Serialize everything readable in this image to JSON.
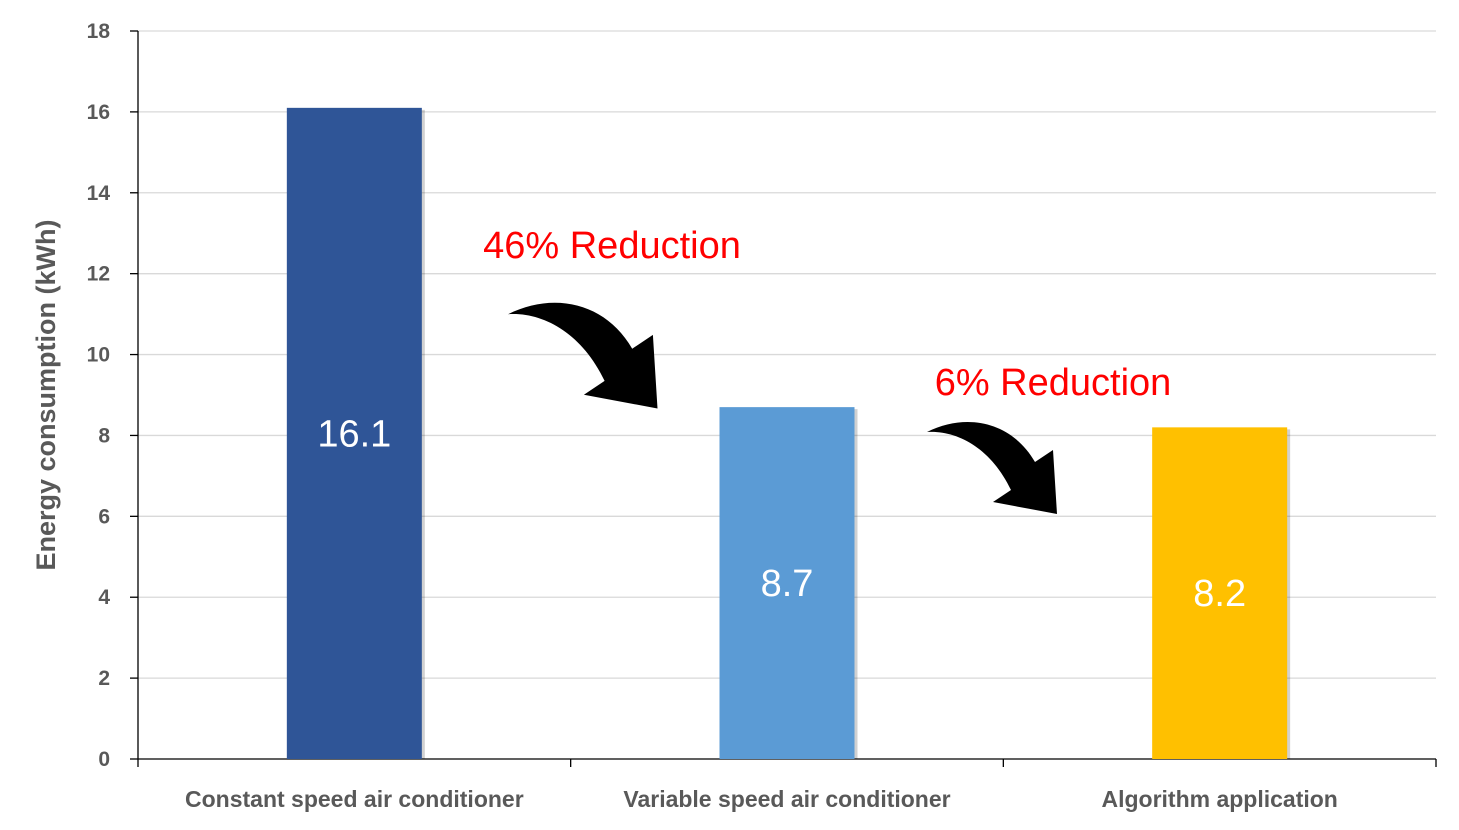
{
  "chart_data": {
    "type": "bar",
    "categories": [
      "Constant speed air conditioner",
      "Variable speed air conditioner",
      "Algorithm application"
    ],
    "values": [
      16.1,
      8.7,
      8.2
    ],
    "value_labels": [
      "16.1",
      "8.7",
      "8.2"
    ],
    "bar_colors": [
      "#2F5597",
      "#5B9BD5",
      "#FFC000"
    ],
    "title": "",
    "xlabel": "",
    "ylabel": "Energy consumption (kWh)",
    "ylim": [
      0,
      18
    ],
    "yticks": [
      0,
      2,
      4,
      6,
      8,
      10,
      12,
      14,
      16,
      18
    ],
    "ytick_labels": [
      "0",
      "2",
      "4",
      "6",
      "8",
      "10",
      "12",
      "14",
      "16",
      "18"
    ],
    "grid": true,
    "legend": "none",
    "annotations": [
      {
        "text": "46% Reduction",
        "color": "#FF0000",
        "arrow": "curved-right-down",
        "from_category": 0,
        "to_category": 1
      },
      {
        "text": "6% Reduction",
        "color": "#FF0000",
        "arrow": "curved-right-down",
        "from_category": 1,
        "to_category": 2
      }
    ]
  }
}
